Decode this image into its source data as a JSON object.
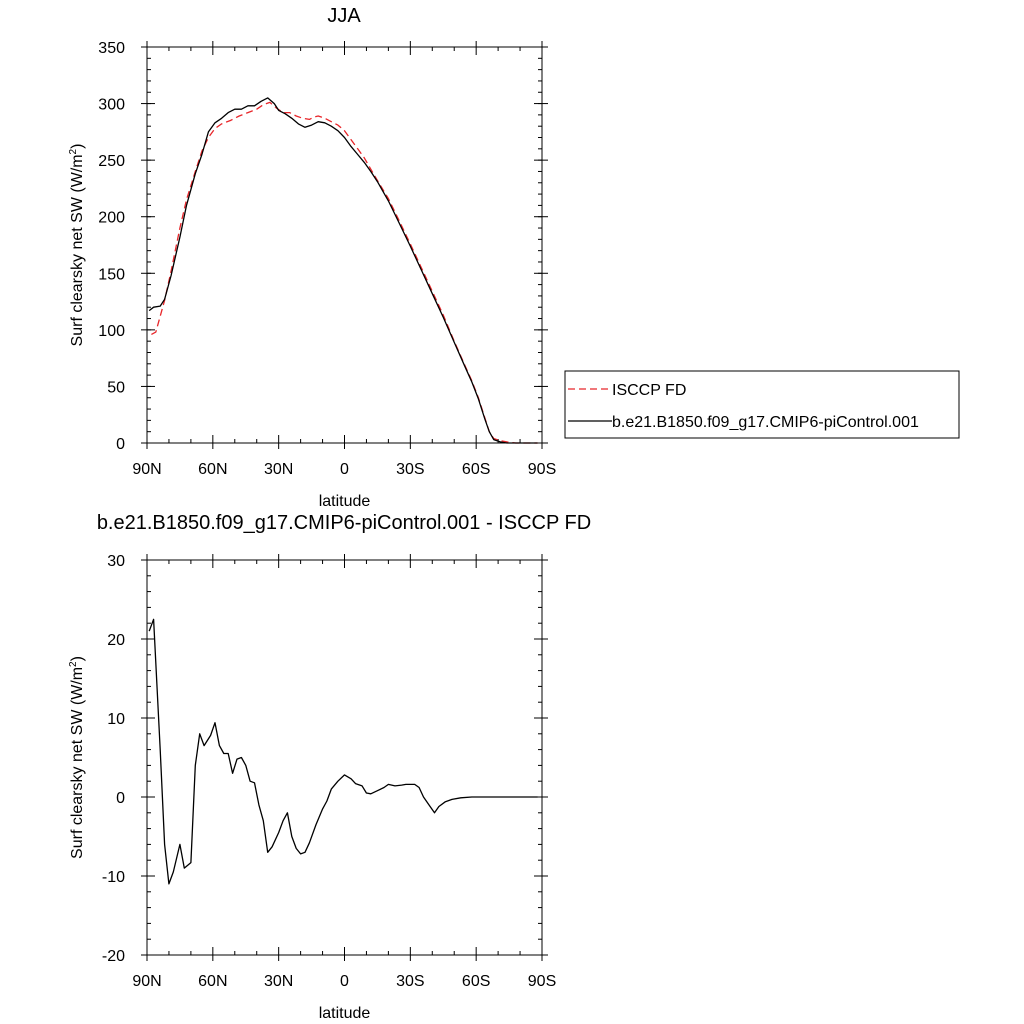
{
  "colors": {
    "obs": "#e8262a",
    "model": "#000000"
  },
  "chart_data": [
    {
      "type": "line",
      "title": "JJA",
      "xlabel": "latitude",
      "ylabel": "Surf clearsky net SW (W/m",
      "ylabel_sup": "2",
      "ylabel_close": ")",
      "xlim": [
        90,
        -90
      ],
      "ylim": [
        0,
        350
      ],
      "x_ticks": [
        {
          "value": 90,
          "label": "90N"
        },
        {
          "value": 60,
          "label": "60N"
        },
        {
          "value": 30,
          "label": "30N"
        },
        {
          "value": 0,
          "label": "0"
        },
        {
          "value": -30,
          "label": "30S"
        },
        {
          "value": -60,
          "label": "60S"
        },
        {
          "value": -90,
          "label": "90S"
        }
      ],
      "y_ticks": [
        {
          "value": 0,
          "label": "0"
        },
        {
          "value": 50,
          "label": "50"
        },
        {
          "value": 100,
          "label": "100"
        },
        {
          "value": 150,
          "label": "150"
        },
        {
          "value": 200,
          "label": "200"
        },
        {
          "value": 250,
          "label": "250"
        },
        {
          "value": 300,
          "label": "300"
        },
        {
          "value": 350,
          "label": "350"
        }
      ],
      "legend": {
        "placement": "right",
        "entries": [
          "ISCCP FD",
          "b.e21.B1850.f09_g17.CMIP6-piControl.001"
        ]
      },
      "series": [
        {
          "name": "ISCCP FD",
          "color": "#e8262a",
          "dash": true,
          "points": [
            [
              88,
              96
            ],
            [
              86,
              98
            ],
            [
              82,
              126
            ],
            [
              79,
              152
            ],
            [
              75,
              190
            ],
            [
              72,
              215
            ],
            [
              68,
              240
            ],
            [
              65,
              258
            ],
            [
              62,
              270
            ],
            [
              59,
              278
            ],
            [
              56,
              282
            ],
            [
              52,
              285
            ],
            [
              48,
              289
            ],
            [
              44,
              292
            ],
            [
              40,
              295
            ],
            [
              37,
              299
            ],
            [
              34,
              301
            ],
            [
              31,
              296
            ],
            [
              28,
              292
            ],
            [
              25,
              292
            ],
            [
              22,
              289
            ],
            [
              19,
              287
            ],
            [
              16,
              286
            ],
            [
              14,
              288
            ],
            [
              12,
              289
            ],
            [
              9,
              287
            ],
            [
              6,
              284
            ],
            [
              3,
              281
            ],
            [
              0,
              276
            ],
            [
              -3,
              268
            ],
            [
              -6,
              260
            ],
            [
              -9,
              252
            ],
            [
              -12,
              242
            ],
            [
              -15,
              232
            ],
            [
              -20,
              216
            ],
            [
              -25,
              196
            ],
            [
              -30,
              176
            ],
            [
              -35,
              155
            ],
            [
              -40,
              134
            ],
            [
              -45,
              113
            ],
            [
              -50,
              90
            ],
            [
              -55,
              68
            ],
            [
              -58,
              55
            ],
            [
              -61,
              40
            ],
            [
              -64,
              22
            ],
            [
              -66,
              10
            ],
            [
              -68,
              4
            ],
            [
              -71,
              2
            ],
            [
              -74,
              1
            ],
            [
              -78,
              0
            ],
            [
              -82,
              0
            ],
            [
              -88,
              0
            ]
          ]
        },
        {
          "name": "b.e21.B1850.f09_g17.CMIP6-piControl.001",
          "color": "#000000",
          "dash": false,
          "points": [
            [
              89,
              117
            ],
            [
              87,
              120
            ],
            [
              84,
              121
            ],
            [
              82,
              127
            ],
            [
              79,
              148
            ],
            [
              75,
              182
            ],
            [
              72,
              210
            ],
            [
              68,
              238
            ],
            [
              65,
              255
            ],
            [
              62,
              275
            ],
            [
              59,
              283
            ],
            [
              56,
              287
            ],
            [
              53,
              292
            ],
            [
              50,
              295
            ],
            [
              47,
              295
            ],
            [
              44,
              298
            ],
            [
              41,
              298
            ],
            [
              38,
              302
            ],
            [
              35,
              305
            ],
            [
              32,
              300
            ],
            [
              30,
              294
            ],
            [
              27,
              291
            ],
            [
              24,
              287
            ],
            [
              21,
              282
            ],
            [
              18,
              279
            ],
            [
              15,
              281
            ],
            [
              12,
              284
            ],
            [
              9,
              283
            ],
            [
              6,
              280
            ],
            [
              3,
              276
            ],
            [
              0,
              270
            ],
            [
              -3,
              262
            ],
            [
              -6,
              255
            ],
            [
              -9,
              248
            ],
            [
              -12,
              240
            ],
            [
              -15,
              231
            ],
            [
              -20,
              214
            ],
            [
              -25,
              194
            ],
            [
              -30,
              174
            ],
            [
              -35,
              153
            ],
            [
              -40,
              132
            ],
            [
              -45,
              111
            ],
            [
              -50,
              89
            ],
            [
              -55,
              67
            ],
            [
              -58,
              54
            ],
            [
              -61,
              39
            ],
            [
              -64,
              21
            ],
            [
              -66,
              10
            ],
            [
              -68,
              3
            ],
            [
              -71,
              1
            ],
            [
              -74,
              0
            ],
            [
              -78,
              0
            ],
            [
              -82,
              0
            ],
            [
              -88,
              0
            ]
          ]
        }
      ]
    },
    {
      "type": "line",
      "title": "b.e21.B1850.f09_g17.CMIP6-piControl.001 - ISCCP FD",
      "xlabel": "latitude",
      "ylabel": "Surf clearsky net SW (W/m",
      "ylabel_sup": "2",
      "ylabel_close": ")",
      "xlim": [
        90,
        -90
      ],
      "ylim": [
        -20,
        30
      ],
      "x_ticks": [
        {
          "value": 90,
          "label": "90N"
        },
        {
          "value": 60,
          "label": "60N"
        },
        {
          "value": 30,
          "label": "30N"
        },
        {
          "value": 0,
          "label": "0"
        },
        {
          "value": -30,
          "label": "30S"
        },
        {
          "value": -60,
          "label": "60S"
        },
        {
          "value": -90,
          "label": "90S"
        }
      ],
      "y_ticks": [
        {
          "value": -20,
          "label": "-20"
        },
        {
          "value": -10,
          "label": "-10"
        },
        {
          "value": 0,
          "label": "0"
        },
        {
          "value": 10,
          "label": "10"
        },
        {
          "value": 20,
          "label": "20"
        },
        {
          "value": 30,
          "label": "30"
        }
      ],
      "series": [
        {
          "name": "",
          "color": "#000000",
          "dash": false,
          "points": [
            [
              89,
              21
            ],
            [
              87,
              22.5
            ],
            [
              84,
              6
            ],
            [
              82,
              -6
            ],
            [
              80,
              -11
            ],
            [
              78,
              -9.5
            ],
            [
              75,
              -6
            ],
            [
              73,
              -9
            ],
            [
              70,
              -8.3
            ],
            [
              68,
              4
            ],
            [
              66,
              8
            ],
            [
              64,
              6.5
            ],
            [
              61,
              7.8
            ],
            [
              59,
              9.4
            ],
            [
              57,
              6.5
            ],
            [
              55,
              5.5
            ],
            [
              53,
              5.5
            ],
            [
              51,
              3
            ],
            [
              49,
              4.8
            ],
            [
              47,
              5
            ],
            [
              45,
              4
            ],
            [
              43,
              2
            ],
            [
              41,
              1.8
            ],
            [
              39,
              -1
            ],
            [
              37,
              -3
            ],
            [
              35,
              -7
            ],
            [
              33,
              -6.3
            ],
            [
              30,
              -4.5
            ],
            [
              28,
              -3
            ],
            [
              26,
              -2
            ],
            [
              24,
              -5
            ],
            [
              22,
              -6.5
            ],
            [
              20,
              -7.2
            ],
            [
              18,
              -7
            ],
            [
              16,
              -5.8
            ],
            [
              13,
              -3.5
            ],
            [
              10,
              -1.5
            ],
            [
              8,
              -0.5
            ],
            [
              6,
              1
            ],
            [
              3,
              2
            ],
            [
              0,
              2.8
            ],
            [
              -3,
              2.3
            ],
            [
              -5,
              1.7
            ],
            [
              -8,
              1.4
            ],
            [
              -10,
              0.5
            ],
            [
              -12,
              0.4
            ],
            [
              -15,
              0.8
            ],
            [
              -18,
              1.2
            ],
            [
              -20,
              1.6
            ],
            [
              -23,
              1.4
            ],
            [
              -26,
              1.5
            ],
            [
              -28,
              1.6
            ],
            [
              -32,
              1.6
            ],
            [
              -34,
              1.2
            ],
            [
              -36,
              0
            ],
            [
              -39,
              -1.2
            ],
            [
              -41,
              -2
            ],
            [
              -43,
              -1.2
            ],
            [
              -46,
              -0.6
            ],
            [
              -49,
              -0.3
            ],
            [
              -53,
              -0.1
            ],
            [
              -58,
              0
            ],
            [
              -62,
              0
            ],
            [
              -66,
              0
            ],
            [
              -88,
              0
            ]
          ]
        }
      ]
    }
  ]
}
